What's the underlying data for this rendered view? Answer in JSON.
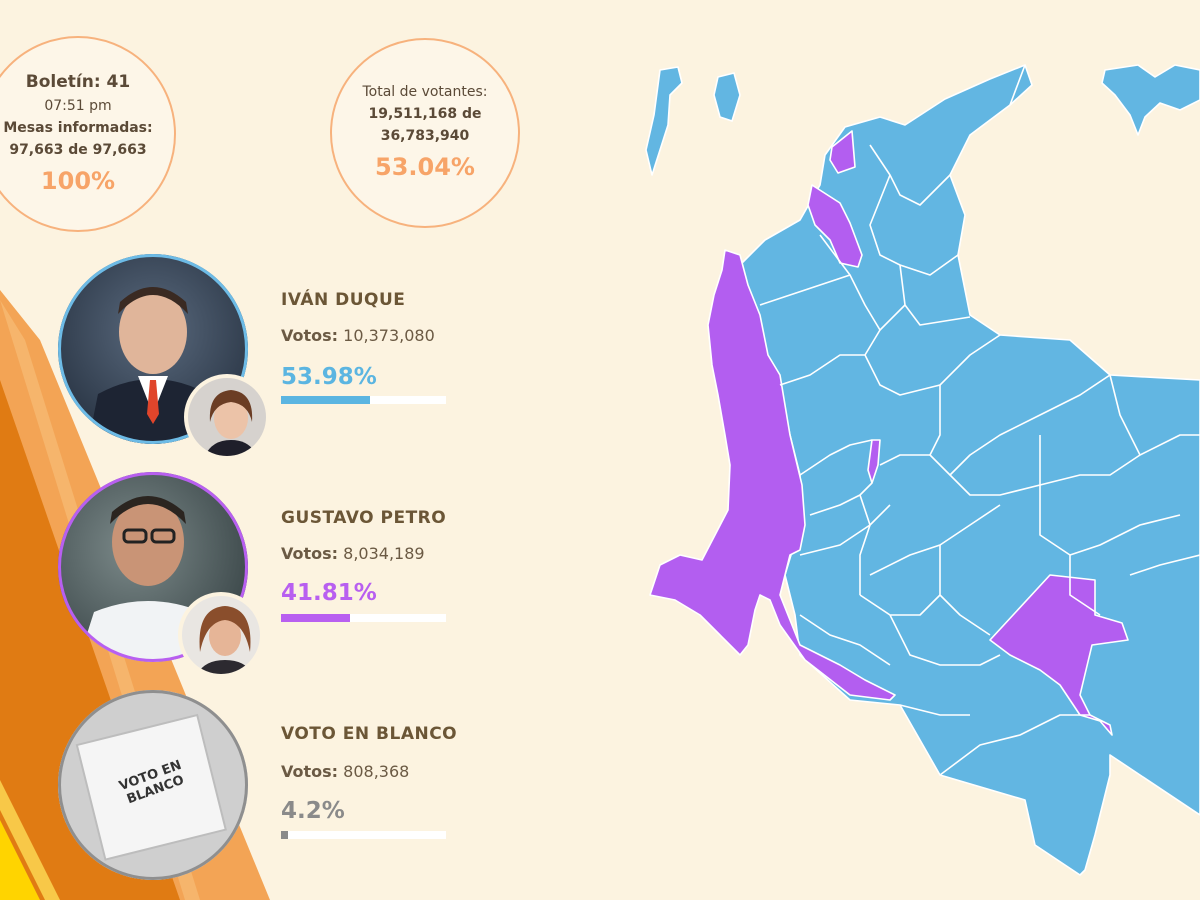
{
  "bulletin": {
    "label": "Boletín: 41",
    "time": "07:51 pm",
    "tables_label": "Mesas informadas:",
    "tables_count": "97,663 de 97,663",
    "percent": "100%"
  },
  "turnout": {
    "label": "Total de votantes:",
    "count": "19,511,168 de",
    "total": "36,783,940",
    "percent": "53.04%"
  },
  "candidates": [
    {
      "name": "IVÁN DUQUE",
      "votes_label": "Votos:",
      "votes": "10,373,080",
      "percent": "53.98%",
      "share": 0.5398,
      "color": "#5bb5e1"
    },
    {
      "name": "GUSTAVO PETRO",
      "votes_label": "Votos:",
      "votes": "8,034,189",
      "percent": "41.81%",
      "share": 0.4181,
      "color": "#b85ff0"
    },
    {
      "name": "VOTO EN BLANCO",
      "votes_label": "Votos:",
      "votes": "808,368",
      "percent": "4.2%",
      "share": 0.042,
      "color": "#8a8a8a"
    }
  ],
  "ballot_text": {
    "line1": "VOTO EN",
    "line2": "BLANCO"
  },
  "map_colors": {
    "duque": "#62b6e2",
    "petro": "#b35ef0",
    "border": "#ffffff"
  }
}
